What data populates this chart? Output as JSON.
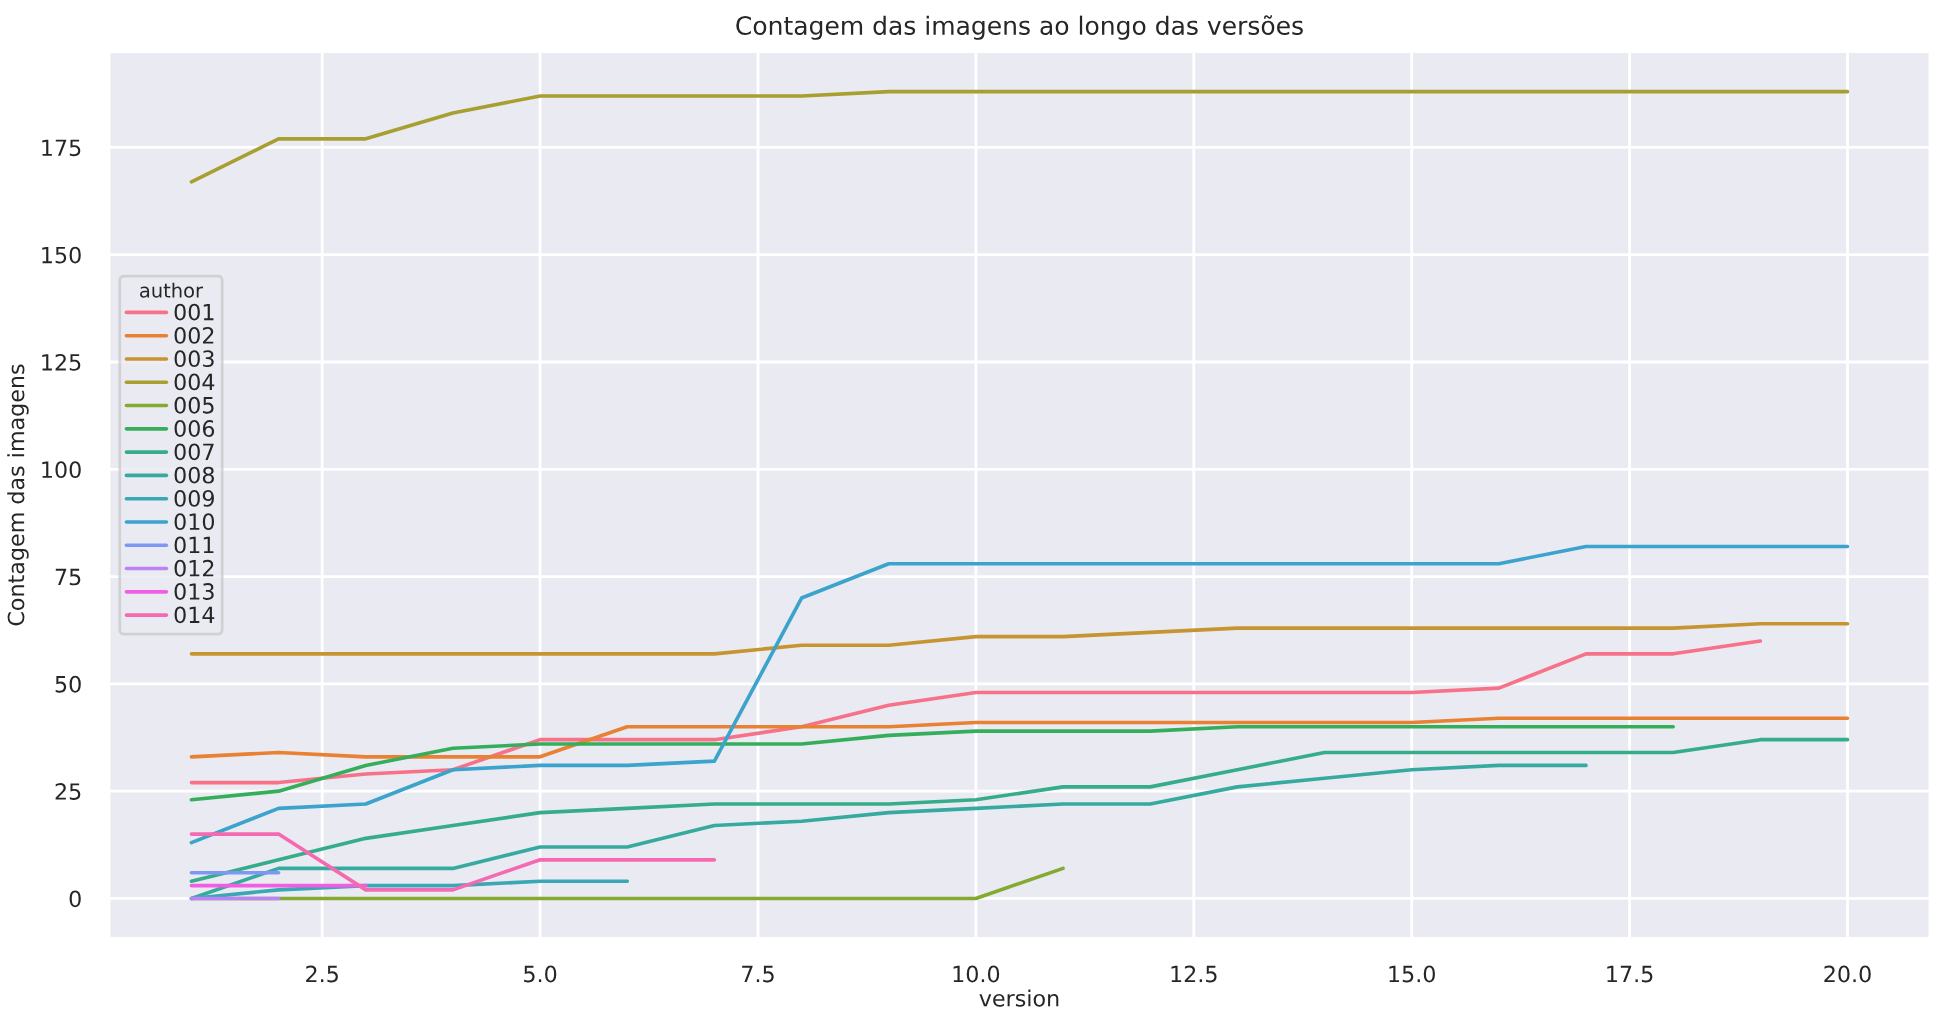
{
  "chart_data": {
    "type": "line",
    "title": "Contagem das imagens ao longo das versões",
    "xlabel": "version",
    "ylabel": "Contagem das imagens",
    "legend_title": "author",
    "legend": "left",
    "grid": true,
    "xlim": [
      0.05,
      20.95
    ],
    "xticks": [
      {
        "value": 2.5,
        "label": "2.5"
      },
      {
        "value": 5,
        "label": "5.0"
      },
      {
        "value": 7.5,
        "label": "7.5"
      },
      {
        "value": 10,
        "label": "10.0"
      },
      {
        "value": 12.5,
        "label": "12.5"
      },
      {
        "value": 15,
        "label": "15.0"
      },
      {
        "value": 17.5,
        "label": "17.5"
      },
      {
        "value": 20,
        "label": "20.0"
      }
    ],
    "ylim": [
      -9.4,
      197.4
    ],
    "yticks": [
      0,
      25,
      50,
      75,
      100,
      125,
      150,
      175
    ],
    "series": [
      {
        "name": "001",
        "color": "#f77189",
        "x": [
          1,
          2,
          3,
          4,
          5,
          6,
          7,
          8,
          9,
          10,
          11,
          12,
          13,
          14,
          15,
          16,
          17,
          18,
          19
        ],
        "values": [
          27,
          27,
          29,
          30,
          37,
          37,
          37,
          40,
          45,
          48,
          48,
          48,
          48,
          48,
          48,
          49,
          57,
          57,
          60
        ]
      },
      {
        "name": "002",
        "color": "#e98132",
        "x": [
          1,
          2,
          3,
          4,
          5,
          6,
          7,
          8,
          9,
          10,
          11,
          12,
          13,
          14,
          15,
          16,
          17,
          18,
          19,
          20
        ],
        "values": [
          33,
          34,
          33,
          33,
          33,
          40,
          40,
          40,
          40,
          41,
          41,
          41,
          41,
          41,
          41,
          42,
          42,
          42,
          42,
          42
        ]
      },
      {
        "name": "003",
        "color": "#c69532",
        "x": [
          1,
          2,
          3,
          4,
          5,
          6,
          7,
          8,
          9,
          10,
          11,
          12,
          13,
          14,
          15,
          16,
          17,
          18,
          19,
          20
        ],
        "values": [
          57,
          57,
          57,
          57,
          57,
          57,
          57,
          59,
          59,
          61,
          61,
          62,
          63,
          63,
          63,
          63,
          63,
          63,
          64,
          64
        ]
      },
      {
        "name": "004",
        "color": "#a89f31",
        "x": [
          1,
          2,
          3,
          4,
          5,
          6,
          7,
          8,
          9,
          10,
          11,
          12,
          13,
          14,
          15,
          16,
          17,
          18,
          19,
          20
        ],
        "values": [
          167,
          177,
          177,
          183,
          187,
          187,
          187,
          187,
          188,
          188,
          188,
          188,
          188,
          188,
          188,
          188,
          188,
          188,
          188,
          188
        ]
      },
      {
        "name": "005",
        "color": "#85a931",
        "x": [
          1,
          2,
          3,
          4,
          5,
          6,
          7,
          8,
          9,
          10,
          11
        ],
        "values": [
          0,
          0,
          0,
          0,
          0,
          0,
          0,
          0,
          0,
          0,
          7
        ]
      },
      {
        "name": "006",
        "color": "#35ae5b",
        "x": [
          1,
          2,
          3,
          4,
          5,
          6,
          7,
          8,
          9,
          10,
          11,
          12,
          13,
          14,
          15,
          16,
          17,
          18
        ],
        "values": [
          23,
          25,
          31,
          35,
          36,
          36,
          36,
          36,
          38,
          39,
          39,
          39,
          40,
          40,
          40,
          40,
          40,
          40
        ]
      },
      {
        "name": "007",
        "color": "#36ad8a",
        "x": [
          1,
          2,
          3,
          4,
          5,
          6,
          7,
          8,
          9,
          10,
          11,
          12,
          13,
          14,
          15,
          16,
          17,
          18,
          19,
          20
        ],
        "values": [
          4,
          9,
          14,
          17,
          20,
          21,
          22,
          22,
          22,
          23,
          26,
          26,
          30,
          34,
          34,
          34,
          34,
          34,
          37,
          37
        ]
      },
      {
        "name": "008",
        "color": "#37aaa0",
        "x": [
          1,
          2,
          3,
          4,
          5,
          6,
          7,
          8,
          9,
          10,
          11,
          12,
          13,
          14,
          15,
          16,
          17
        ],
        "values": [
          0,
          7,
          7,
          7,
          12,
          12,
          17,
          18,
          20,
          21,
          22,
          22,
          26,
          28,
          30,
          31,
          31
        ]
      },
      {
        "name": "009",
        "color": "#39a7b4",
        "x": [
          1,
          2,
          3,
          4,
          5,
          6
        ],
        "values": [
          0,
          2,
          3,
          3,
          4,
          4
        ]
      },
      {
        "name": "010",
        "color": "#3ba3cc",
        "x": [
          1,
          2,
          3,
          4,
          5,
          6,
          7,
          8,
          9,
          10,
          11,
          12,
          13,
          14,
          15,
          16,
          17,
          18,
          19,
          20
        ],
        "values": [
          13,
          21,
          22,
          30,
          31,
          31,
          32,
          70,
          78,
          78,
          78,
          78,
          78,
          78,
          78,
          78,
          82,
          82,
          82,
          82
        ]
      },
      {
        "name": "011",
        "color": "#7f97f4",
        "x": [
          1,
          2
        ],
        "values": [
          6,
          6
        ]
      },
      {
        "name": "012",
        "color": "#bb83f4",
        "x": [
          1,
          2
        ],
        "values": [
          0,
          0
        ]
      },
      {
        "name": "013",
        "color": "#f05fe2",
        "x": [
          1,
          2,
          3
        ],
        "values": [
          3,
          3,
          3
        ]
      },
      {
        "name": "014",
        "color": "#f569b0",
        "x": [
          1,
          2,
          3,
          4,
          5,
          6,
          7
        ],
        "values": [
          15,
          15,
          2,
          2,
          9,
          9,
          9
        ]
      }
    ]
  }
}
